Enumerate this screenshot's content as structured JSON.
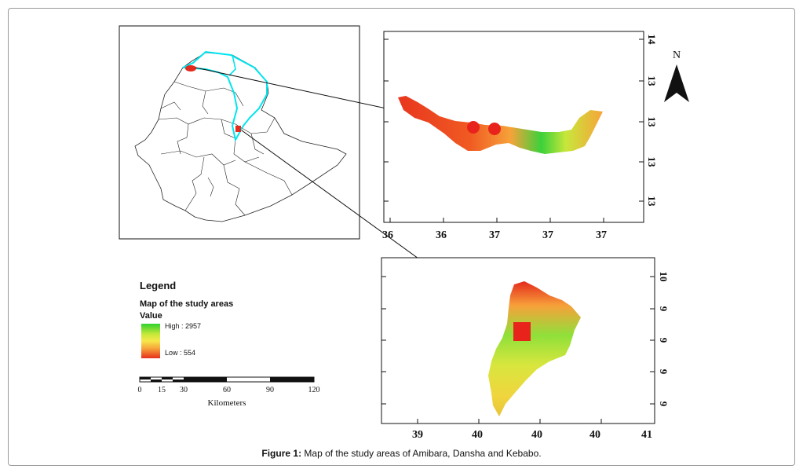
{
  "legend": {
    "title": "Legend",
    "subtitle": "Map of the study areas",
    "value_label": "Value",
    "high_label": "High : 2957",
    "low_label": "Low : 554",
    "ramp_colors": [
      "#2fd22f",
      "#f7e84a",
      "#e7301c"
    ]
  },
  "scale_bar": {
    "ticks": [
      "0",
      "15",
      "30",
      "60",
      "90",
      "120"
    ],
    "unit": "Kilometers"
  },
  "north_arrow": {
    "label": "N"
  },
  "top_map": {
    "x_labels": [
      "36",
      "36",
      "37",
      "37",
      "37"
    ],
    "y_labels": [
      "14",
      "13",
      "13",
      "13",
      "13"
    ],
    "study_markers": 2
  },
  "bottom_map": {
    "x_labels": [
      "39",
      "40",
      "40",
      "40",
      "41"
    ],
    "y_labels": [
      "10",
      "9",
      "9",
      "9",
      "9"
    ],
    "study_markers": 1
  },
  "colors": {
    "low": "#e7301c",
    "mid": "#f7e84a",
    "high": "#2fd22f",
    "boundary": "#00e5ee",
    "marker": "#e8231c"
  },
  "caption": {
    "label": "Figure 1:",
    "text": " Map of the study areas of Amibara, Dansha and Kebabo."
  }
}
